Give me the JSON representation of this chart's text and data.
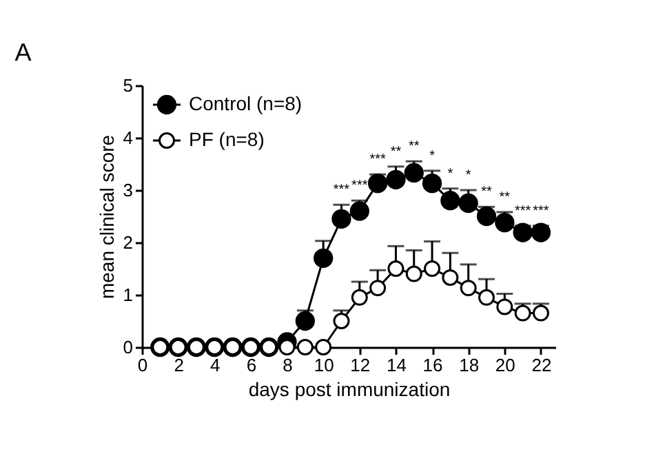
{
  "chart_data": {
    "type": "line",
    "title": "A",
    "xlabel": "days post immunization",
    "ylabel": "mean clinical score",
    "x": [
      1,
      2,
      3,
      4,
      5,
      6,
      7,
      8,
      9,
      10,
      11,
      12,
      13,
      14,
      15,
      16,
      17,
      18,
      19,
      20,
      21,
      22
    ],
    "series": [
      {
        "name": "Control (n=8)",
        "color": "#000000",
        "values": [
          0,
          0,
          0,
          0,
          0,
          0,
          0,
          0.1,
          0.5,
          1.7,
          2.45,
          2.6,
          3.13,
          3.2,
          3.33,
          3.13,
          2.8,
          2.75,
          2.5,
          2.38,
          2.19,
          2.19
        ],
        "errors": [
          null,
          null,
          null,
          null,
          null,
          null,
          null,
          null,
          [
            0.5,
            0.7
          ],
          [
            1.7,
            2.03
          ],
          [
            2.45,
            2.72
          ],
          [
            2.6,
            2.8
          ],
          [
            3.13,
            3.3
          ],
          [
            3.2,
            3.45
          ],
          [
            3.33,
            3.55
          ],
          [
            3.13,
            3.37
          ],
          [
            2.8,
            3.03
          ],
          [
            2.75,
            3.0
          ],
          [
            2.5,
            2.68
          ],
          [
            2.38,
            2.58
          ],
          [
            2.19,
            2.32
          ],
          [
            2.19,
            2.32
          ]
        ]
      },
      {
        "name": "PF (n=8)",
        "color": "#000000",
        "values": [
          0,
          0,
          0,
          0,
          0,
          0,
          0,
          0,
          0,
          0,
          0.5,
          0.95,
          1.13,
          1.5,
          1.4,
          1.5,
          1.33,
          1.13,
          0.95,
          0.77,
          0.65,
          0.65
        ],
        "errors": [
          null,
          null,
          null,
          null,
          null,
          null,
          null,
          null,
          null,
          null,
          [
            0.5,
            0.7
          ],
          [
            0.95,
            1.25
          ],
          [
            1.13,
            1.47
          ],
          [
            1.5,
            1.93
          ],
          [
            1.4,
            1.85
          ],
          [
            1.5,
            2.02
          ],
          [
            1.33,
            1.8
          ],
          [
            1.13,
            1.58
          ],
          [
            0.95,
            1.3
          ],
          [
            0.77,
            1.02
          ],
          [
            0.65,
            0.83
          ],
          [
            0.65,
            0.83
          ]
        ]
      }
    ],
    "annotations": [
      {
        "text": "***",
        "x": 11,
        "y": 2.72
      },
      {
        "text": "***",
        "x": 12,
        "y": 2.8
      },
      {
        "text": "***",
        "x": 13,
        "y": 3.3
      },
      {
        "text": "**",
        "x": 14,
        "y": 3.45
      },
      {
        "text": "**",
        "x": 15,
        "y": 3.55
      },
      {
        "text": "*",
        "x": 16,
        "y": 3.37
      },
      {
        "text": "*",
        "x": 17,
        "y": 3.03
      },
      {
        "text": "*",
        "x": 18,
        "y": 3.0
      },
      {
        "text": "**",
        "x": 19,
        "y": 2.68
      },
      {
        "text": "**",
        "x": 20,
        "y": 2.58
      },
      {
        "text": "***",
        "x": 21,
        "y": 2.32
      },
      {
        "text": "***",
        "x": 22,
        "y": 2.32
      }
    ],
    "xlim": [
      0,
      22.8
    ],
    "xticks": [
      0,
      2,
      4,
      6,
      8,
      10,
      12,
      14,
      16,
      18,
      20,
      22
    ],
    "ylim": [
      0,
      5
    ],
    "yticks": [
      0,
      1,
      2,
      3,
      4,
      5
    ],
    "grid": false,
    "legend": "top left",
    "marker": "circle",
    "line_style": "solid"
  }
}
